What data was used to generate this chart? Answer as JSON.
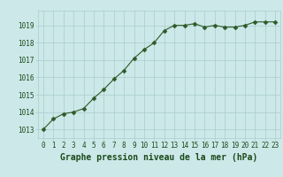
{
  "x": [
    0,
    1,
    2,
    3,
    4,
    5,
    6,
    7,
    8,
    9,
    10,
    11,
    12,
    13,
    14,
    15,
    16,
    17,
    18,
    19,
    20,
    21,
    22,
    23
  ],
  "y": [
    1013.0,
    1013.6,
    1013.9,
    1014.0,
    1014.2,
    1014.8,
    1015.3,
    1015.9,
    1016.4,
    1017.1,
    1017.6,
    1018.0,
    1018.7,
    1019.0,
    1019.0,
    1019.1,
    1018.9,
    1019.0,
    1018.9,
    1018.9,
    1019.0,
    1019.2,
    1019.2,
    1019.2
  ],
  "line_color": "#2d5a27",
  "marker_color": "#2d5a27",
  "bg_color": "#cce8e8",
  "grid_color": "#aacccc",
  "text_color": "#1a4a1a",
  "xlabel": "Graphe pression niveau de la mer (hPa)",
  "ylim_min": 1012.5,
  "ylim_max": 1019.85,
  "yticks": [
    1013,
    1014,
    1015,
    1016,
    1017,
    1018,
    1019
  ],
  "xticks": [
    0,
    1,
    2,
    3,
    4,
    5,
    6,
    7,
    8,
    9,
    10,
    11,
    12,
    13,
    14,
    15,
    16,
    17,
    18,
    19,
    20,
    21,
    22,
    23
  ],
  "tick_fontsize": 5.5,
  "xlabel_fontsize": 7.0,
  "line_width": 0.8,
  "marker_size": 2.5
}
